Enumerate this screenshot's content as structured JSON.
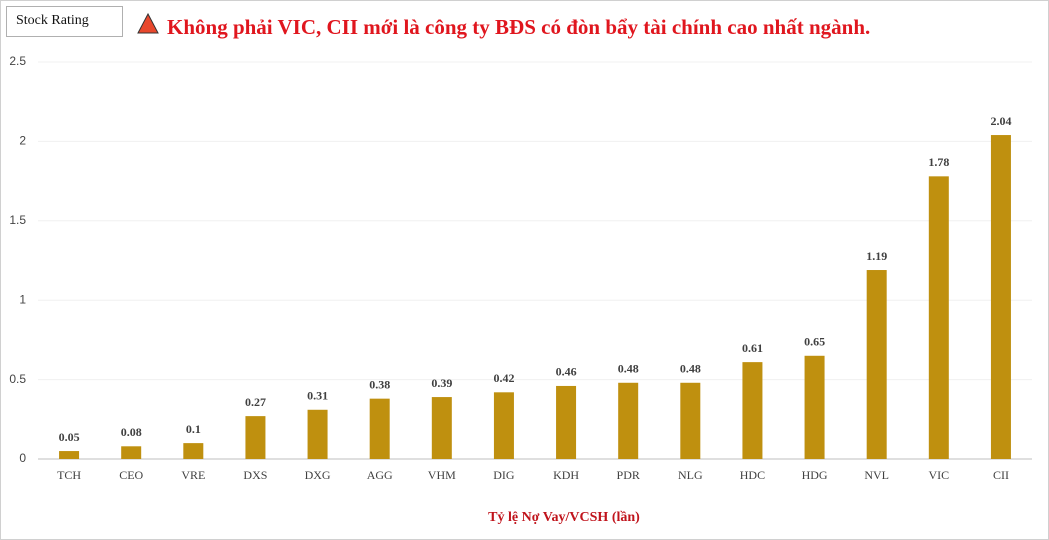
{
  "chart_data": {
    "type": "bar",
    "badge": "Stock Rating",
    "title": "Không phải VIC, CII mới là công ty BĐS có đòn bẩy tài chính cao nhất ngành.",
    "x_label": "Tỷ lệ Nợ Vay/VCSH (lần)",
    "categories": [
      "TCH",
      "CEO",
      "VRE",
      "DXS",
      "DXG",
      "AGG",
      "VHM",
      "DIG",
      "KDH",
      "PDR",
      "NLG",
      "HDC",
      "HDG",
      "NVL",
      "VIC",
      "CII"
    ],
    "values": [
      0.05,
      0.08,
      0.1,
      0.27,
      0.31,
      0.38,
      0.39,
      0.42,
      0.46,
      0.48,
      0.48,
      0.61,
      0.65,
      1.19,
      1.78,
      2.04
    ],
    "color": "#bf900f",
    "ylim": [
      0,
      2.5
    ],
    "yticks": [
      0,
      0.5,
      1,
      1.5,
      2,
      2.5
    ],
    "grid": true
  }
}
